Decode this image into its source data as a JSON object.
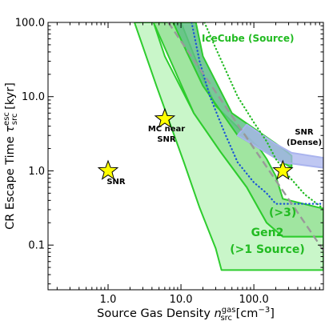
{
  "chart_data": {
    "type": "area",
    "x_scale": "log",
    "y_scale": "log",
    "xlim": [
      0.15,
      900
    ],
    "ylim": [
      0.025,
      100
    ],
    "grid": false,
    "xlabel": {
      "main": "Source Gas Density ",
      "sym": "n",
      "sup": "gas",
      "sub": "src",
      "unit": " [cm",
      "unit_sup": "−3",
      "unit_end": "]"
    },
    "ylabel": {
      "main": "CR Escape Time ",
      "sym": "τ",
      "sup": "esc",
      "sub": "src",
      "unit": " [kyr]"
    },
    "x_ticks": [
      {
        "value": 1,
        "label": "1.0"
      },
      {
        "value": 10,
        "label": "10.0"
      },
      {
        "value": 100,
        "label": "100.0"
      }
    ],
    "y_ticks": [
      {
        "value": 0.1,
        "label": "0.1"
      },
      {
        "value": 1,
        "label": "1.0"
      },
      {
        "value": 10,
        "label": "10.0"
      },
      {
        "value": 100,
        "label": "100.0"
      }
    ],
    "regions": [
      {
        "name": "Gen2 (>1 Source)",
        "fill": "#bff5bf",
        "stroke": "#2ecc2e",
        "points": [
          [
            2.3,
            100
          ],
          [
            4.6,
            14
          ],
          [
            11,
            1.3
          ],
          [
            18,
            0.32
          ],
          [
            30,
            0.09
          ],
          [
            36,
            0.046
          ],
          [
            900,
            0.046
          ],
          [
            900,
            0.13
          ],
          [
            250,
            0.13
          ],
          [
            150,
            0.2
          ],
          [
            80,
            0.6
          ],
          [
            35,
            1.8
          ],
          [
            15,
            6
          ],
          [
            6,
            35
          ],
          [
            4.2,
            100
          ]
        ]
      },
      {
        "name": "Gen2 (>3)",
        "fill": "#8fe08f",
        "stroke": "#2ecc2e",
        "points": [
          [
            4.2,
            100
          ],
          [
            15,
            6
          ],
          [
            35,
            1.8
          ],
          [
            80,
            0.6
          ],
          [
            150,
            0.2
          ],
          [
            250,
            0.13
          ],
          [
            900,
            0.13
          ],
          [
            900,
            0.31
          ],
          [
            250,
            0.42
          ],
          [
            200,
            0.85
          ],
          [
            150,
            1.45
          ],
          [
            120,
            2
          ],
          [
            30,
            7.5
          ],
          [
            20,
            18
          ],
          [
            10,
            100
          ]
        ]
      },
      {
        "name": "IceCube band",
        "fill": "#5fbf85",
        "stroke": "#2ecc2e",
        "points": [
          [
            7.8,
            100
          ],
          [
            12,
            40
          ],
          [
            20,
            14
          ],
          [
            60,
            3
          ],
          [
            250,
            1.3
          ],
          [
            330,
            1.1
          ],
          [
            330,
            1.6
          ],
          [
            250,
            2
          ],
          [
            50,
            6
          ],
          [
            20,
            35
          ],
          [
            16,
            100
          ]
        ]
      },
      {
        "name": "SNR (Dense) band",
        "fill": "#aab4ee",
        "stroke": "#aab4ee",
        "points": [
          [
            60,
            3
          ],
          [
            250,
            1.3
          ],
          [
            900,
            1.1
          ],
          [
            900,
            1.5
          ],
          [
            330,
            1.75
          ],
          [
            200,
            2.3
          ],
          [
            80,
            4.2
          ]
        ]
      }
    ],
    "lines": [
      {
        "name": "IceCube (Source)",
        "color": "#22bb22",
        "style": "dotted",
        "points": [
          [
            21,
            100
          ],
          [
            30,
            45
          ],
          [
            60,
            10
          ],
          [
            100,
            4.5
          ],
          [
            150,
            2.5
          ],
          [
            200,
            1.45
          ],
          [
            300,
            0.85
          ],
          [
            500,
            0.48
          ],
          [
            900,
            0.31
          ]
        ]
      },
      {
        "name": "blue dotted",
        "color": "#1a55d6",
        "style": "dotted",
        "points": [
          [
            14,
            100
          ],
          [
            18,
            30
          ],
          [
            25,
            10
          ],
          [
            40,
            3.2
          ],
          [
            60,
            1.3
          ],
          [
            100,
            0.7
          ],
          [
            150,
            0.5
          ],
          [
            200,
            0.36
          ],
          [
            900,
            0.36
          ]
        ]
      },
      {
        "name": "grey dashed",
        "color": "#999999",
        "style": "dashed",
        "points": [
          [
            6.7,
            100
          ],
          [
            900,
            0.085
          ]
        ]
      }
    ],
    "markers": [
      {
        "label": "SNR",
        "x": 1.0,
        "y": 1.0
      },
      {
        "label": "MC near SNR",
        "x": 6.0,
        "y": 5.0
      },
      {
        "label": "SNR (Dense)",
        "x": 250,
        "y": 1.0
      }
    ],
    "annotations": [
      {
        "text": "IceCube (Source)",
        "color": "#22bb22"
      },
      {
        "text": "SNR"
      },
      {
        "text": "MC near"
      },
      {
        "text": "SNR"
      },
      {
        "text": "SNR"
      },
      {
        "text": "(Dense)"
      },
      {
        "text": "(>3)",
        "color": "#22bb22"
      },
      {
        "text": "Gen2",
        "color": "#22bb22"
      },
      {
        "text": "(>1 Source)",
        "color": "#22bb22"
      }
    ]
  }
}
